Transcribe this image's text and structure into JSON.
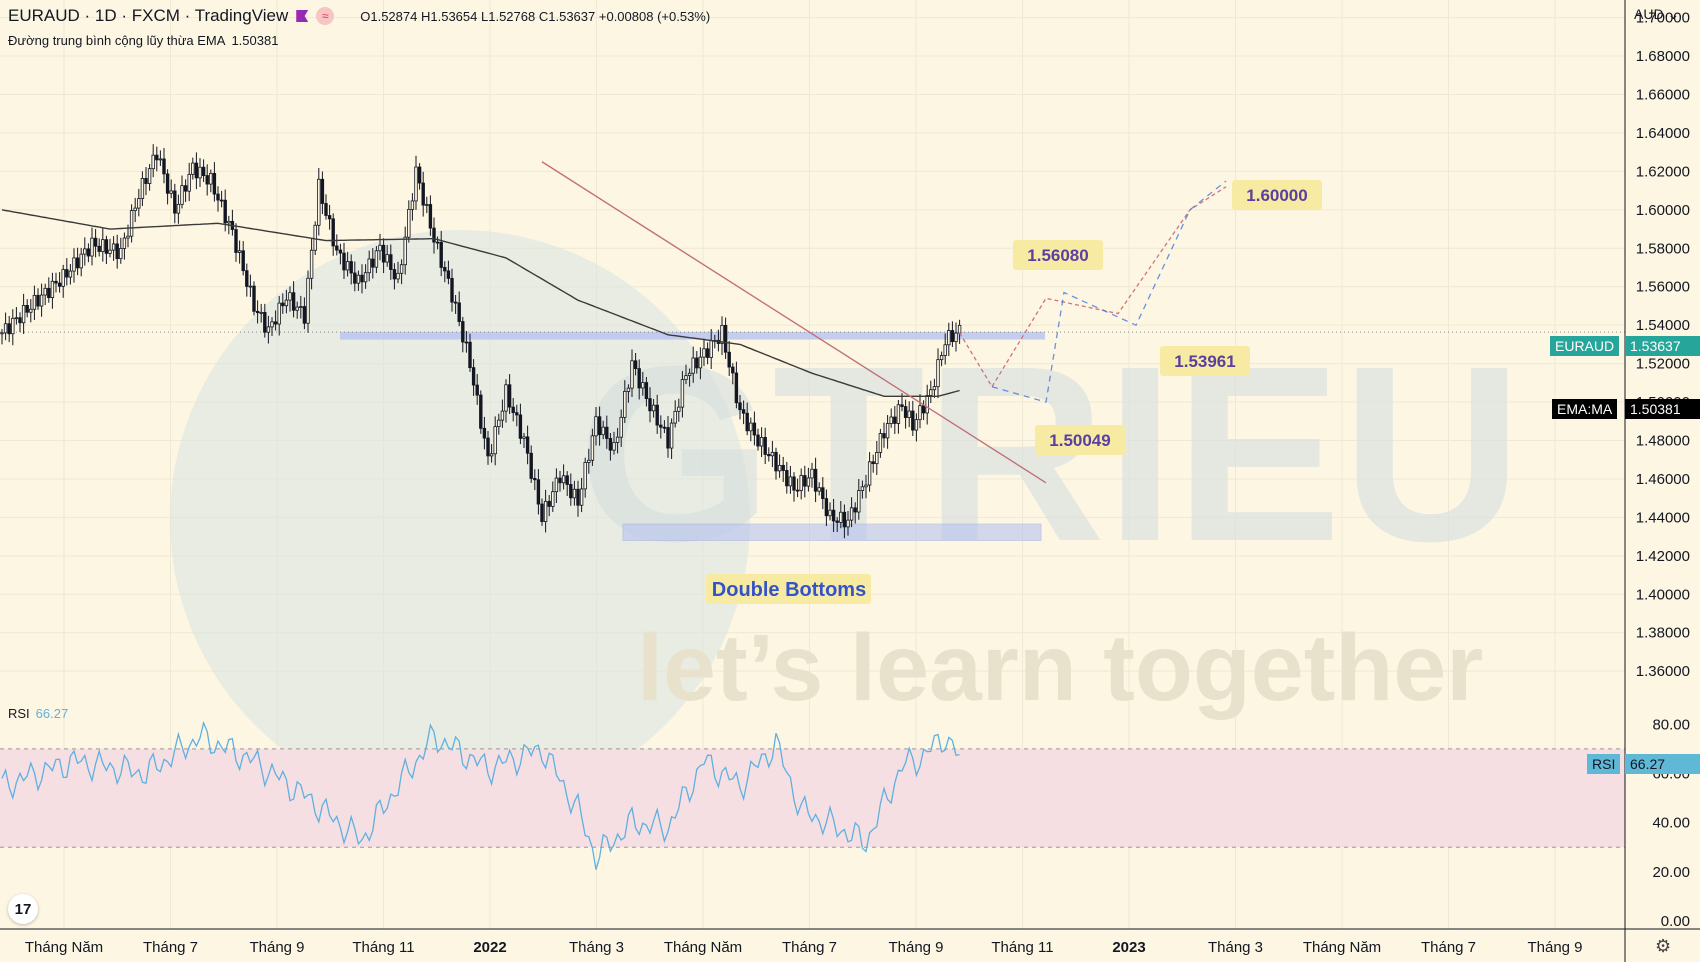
{
  "header": {
    "symbol": "EURAUD · 1D · FXCM · TradingView",
    "open": "O1.52874",
    "high": "H1.53654",
    "low": "L1.52768",
    "close": "C1.53637",
    "change": "+0.00808 (+0.53%)"
  },
  "ema_legend": {
    "label": "Đường trung bình cộng lũy thừa EMA",
    "value": "1.50381"
  },
  "rsi_legend": {
    "label": "RSI",
    "value": "66.27"
  },
  "currency": "AUD",
  "price_tags": {
    "symbol_label": "EURAUD",
    "symbol_value": "1.53637",
    "ema_label": "EMA:MA",
    "ema_value": "1.50381",
    "rsi_label": "RSI",
    "rsi_value": "66.27"
  },
  "annotations": {
    "target_1": "1.60000",
    "target_2": "1.56080",
    "target_3": "1.53961",
    "target_4": "1.50049",
    "pattern": "Double Bottoms"
  },
  "watermark": {
    "brand": "GTRIEU",
    "slogan": "let’s learn together"
  },
  "colors": {
    "background": "#fdf6e3",
    "candle": "#131722",
    "support_zone": "#b7c3f0",
    "trendline": "#c2707a",
    "rsi_line": "#5fb0e0",
    "rsi_band": "#f5dfe3",
    "label_bg": "#f7eba3",
    "label_text": "#5b3fa0",
    "symbol_tag": "#26a69a",
    "rsi_tag": "#5fb8d6",
    "ema_tag": "#000000"
  },
  "chart_data": {
    "type": "candlestick",
    "price_axis": {
      "ticks": [
        "1.70000",
        "1.68000",
        "1.66000",
        "1.64000",
        "1.62000",
        "1.60000",
        "1.58000",
        "1.56000",
        "1.54000",
        "1.52000",
        "1.50000",
        "1.48000",
        "1.46000",
        "1.44000",
        "1.42000",
        "1.40000",
        "1.38000",
        "1.36000"
      ],
      "range": [
        1.345,
        1.705
      ]
    },
    "rsi_axis": {
      "ticks": [
        "80.00",
        "60.00",
        "40.00",
        "20.00",
        "0.00"
      ],
      "range": [
        0,
        85
      ],
      "band": [
        30,
        70
      ]
    },
    "time_axis": [
      "Tháng Năm",
      "Tháng 7",
      "Tháng 9",
      "Tháng 11",
      "2022",
      "Tháng 3",
      "Tháng Năm",
      "Tháng 7",
      "Tháng 9",
      "Tháng 11",
      "2023",
      "Tháng 3",
      "Tháng Năm",
      "Tháng 7",
      "Tháng 9"
    ],
    "time_axis_bold": [
      "2022",
      "2023"
    ],
    "price_path": [
      [
        0,
        1.536
      ],
      [
        8,
        1.55
      ],
      [
        17,
        1.565
      ],
      [
        25,
        1.582
      ],
      [
        33,
        1.578
      ],
      [
        38,
        1.608
      ],
      [
        43,
        1.63
      ],
      [
        48,
        1.6
      ],
      [
        53,
        1.622
      ],
      [
        58,
        1.615
      ],
      [
        64,
        1.588
      ],
      [
        70,
        1.55
      ],
      [
        74,
        1.537
      ],
      [
        79,
        1.555
      ],
      [
        84,
        1.545
      ],
      [
        88,
        1.612
      ],
      [
        93,
        1.578
      ],
      [
        99,
        1.562
      ],
      [
        105,
        1.58
      ],
      [
        110,
        1.563
      ],
      [
        115,
        1.62
      ],
      [
        120,
        1.585
      ],
      [
        125,
        1.556
      ],
      [
        130,
        1.52
      ],
      [
        135,
        1.47
      ],
      [
        140,
        1.505
      ],
      [
        145,
        1.48
      ],
      [
        150,
        1.44
      ],
      [
        155,
        1.462
      ],
      [
        160,
        1.448
      ],
      [
        165,
        1.49
      ],
      [
        170,
        1.475
      ],
      [
        175,
        1.52
      ],
      [
        180,
        1.498
      ],
      [
        185,
        1.48
      ],
      [
        190,
        1.515
      ],
      [
        195,
        1.525
      ],
      [
        200,
        1.536
      ],
      [
        205,
        1.495
      ],
      [
        210,
        1.48
      ],
      [
        215,
        1.468
      ],
      [
        220,
        1.455
      ],
      [
        225,
        1.462
      ],
      [
        230,
        1.44
      ],
      [
        235,
        1.438
      ],
      [
        240,
        1.46
      ],
      [
        245,
        1.485
      ],
      [
        250,
        1.498
      ],
      [
        253,
        1.488
      ],
      [
        258,
        1.505
      ],
      [
        262,
        1.532
      ],
      [
        266,
        1.537
      ]
    ],
    "support_zone": [
      1.5325,
      1.5365
    ],
    "bottom_zone": [
      1.428,
      1.4365
    ],
    "ema_path": [
      [
        0,
        1.6
      ],
      [
        30,
        1.59
      ],
      [
        60,
        1.593
      ],
      [
        90,
        1.584
      ],
      [
        120,
        1.585
      ],
      [
        140,
        1.575
      ],
      [
        160,
        1.553
      ],
      [
        185,
        1.535
      ],
      [
        205,
        1.53
      ],
      [
        225,
        1.515
      ],
      [
        245,
        1.503
      ],
      [
        260,
        1.503
      ],
      [
        266,
        1.506
      ]
    ],
    "trendline": [
      [
        150,
        1.625
      ],
      [
        290,
        1.458
      ]
    ],
    "scenario_red": [
      [
        266,
        1.536
      ],
      [
        275,
        1.508
      ],
      [
        290,
        1.554
      ],
      [
        310,
        1.546
      ],
      [
        330,
        1.6
      ],
      [
        340,
        1.612
      ]
    ],
    "scenario_blue": [
      [
        275,
        1.508
      ],
      [
        290,
        1.5
      ],
      [
        295,
        1.557
      ],
      [
        315,
        1.54
      ],
      [
        330,
        1.6
      ],
      [
        340,
        1.615
      ]
    ],
    "rsi_path": [
      [
        0,
        55
      ],
      [
        20,
        65
      ],
      [
        40,
        60
      ],
      [
        55,
        75
      ],
      [
        70,
        65
      ],
      [
        85,
        50
      ],
      [
        95,
        38
      ],
      [
        100,
        33
      ],
      [
        110,
        55
      ],
      [
        120,
        75
      ],
      [
        135,
        62
      ],
      [
        150,
        70
      ],
      [
        160,
        45
      ],
      [
        165,
        26
      ],
      [
        175,
        40
      ],
      [
        185,
        38
      ],
      [
        195,
        65
      ],
      [
        205,
        55
      ],
      [
        215,
        72
      ],
      [
        222,
        45
      ],
      [
        232,
        38
      ],
      [
        240,
        32
      ],
      [
        250,
        63
      ],
      [
        255,
        66
      ],
      [
        262,
        75
      ],
      [
        266,
        66
      ]
    ]
  }
}
